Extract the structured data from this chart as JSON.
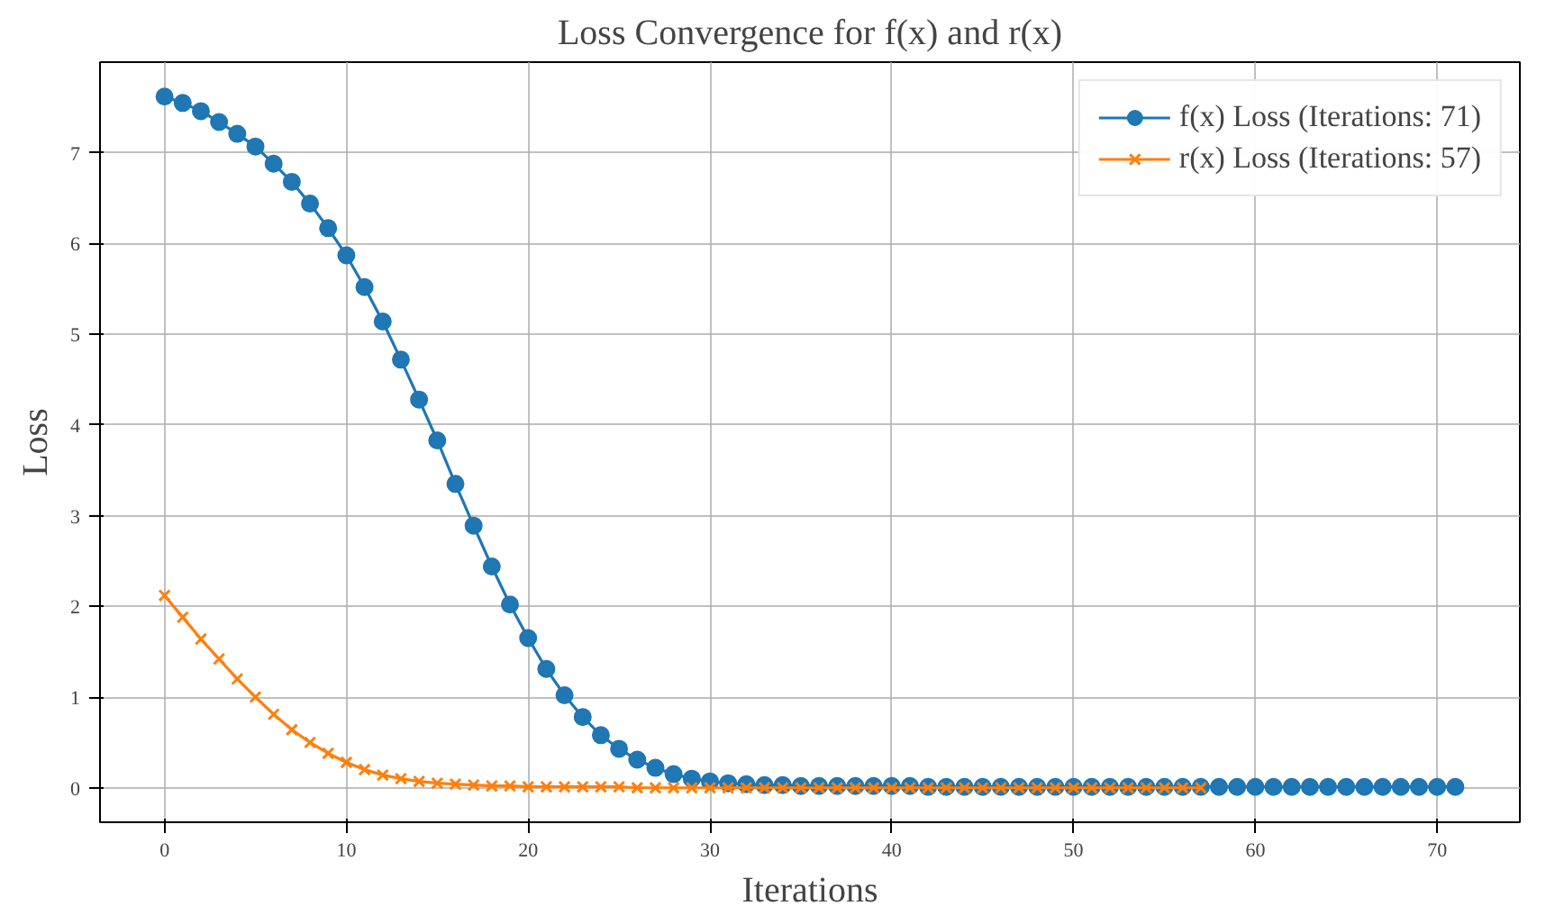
{
  "chart_data": {
    "type": "line",
    "title": "Loss Convergence for f(x) and r(x)",
    "xlabel": "Iterations",
    "ylabel": "Loss",
    "xlim": [
      -3.55,
      74.55
    ],
    "ylim": [
      -0.38,
      8.0
    ],
    "xticks": [
      0,
      10,
      20,
      30,
      40,
      50,
      60,
      70
    ],
    "yticks": [
      0,
      1,
      2,
      3,
      4,
      5,
      6,
      7
    ],
    "grid": true,
    "legend": "top right",
    "series": [
      {
        "name": "f(x) Loss (Iterations: 71)",
        "color": "#1f77b4",
        "marker": "circle",
        "x": [
          0,
          1,
          2,
          3,
          4,
          5,
          6,
          7,
          8,
          9,
          10,
          11,
          12,
          13,
          14,
          15,
          16,
          17,
          18,
          19,
          20,
          21,
          22,
          23,
          24,
          25,
          26,
          27,
          28,
          29,
          30,
          31,
          32,
          33,
          34,
          35,
          36,
          37,
          38,
          39,
          40,
          41,
          42,
          43,
          44,
          45,
          46,
          47,
          48,
          49,
          50,
          51,
          52,
          53,
          54,
          55,
          56,
          57,
          58,
          59,
          60,
          61,
          62,
          63,
          64,
          65,
          66,
          67,
          68,
          69,
          70,
          71
        ],
        "values": [
          7.62,
          7.55,
          7.46,
          7.34,
          7.21,
          7.07,
          6.88,
          6.68,
          6.44,
          6.17,
          5.87,
          5.52,
          5.14,
          4.72,
          4.28,
          3.83,
          3.35,
          2.89,
          2.44,
          2.02,
          1.65,
          1.31,
          1.02,
          0.78,
          0.58,
          0.43,
          0.31,
          0.22,
          0.15,
          0.1,
          0.07,
          0.05,
          0.04,
          0.03,
          0.03,
          0.02,
          0.02,
          0.02,
          0.02,
          0.02,
          0.02,
          0.02,
          0.01,
          0.01,
          0.01,
          0.01,
          0.01,
          0.01,
          0.01,
          0.01,
          0.01,
          0.01,
          0.01,
          0.01,
          0.01,
          0.01,
          0.01,
          0.01,
          0.01,
          0.01,
          0.01,
          0.01,
          0.01,
          0.01,
          0.01,
          0.01,
          0.01,
          0.01,
          0.01,
          0.01,
          0.01,
          0.01
        ]
      },
      {
        "name": "r(x) Loss (Iterations: 57)",
        "color": "#ff7f0e",
        "marker": "cross",
        "x": [
          0,
          1,
          2,
          3,
          4,
          5,
          6,
          7,
          8,
          9,
          10,
          11,
          12,
          13,
          14,
          15,
          16,
          17,
          18,
          19,
          20,
          21,
          22,
          23,
          24,
          25,
          26,
          27,
          28,
          29,
          30,
          31,
          32,
          33,
          34,
          35,
          36,
          37,
          38,
          39,
          40,
          41,
          42,
          43,
          44,
          45,
          46,
          47,
          48,
          49,
          50,
          51,
          52,
          53,
          54,
          55,
          56,
          57
        ],
        "values": [
          2.12,
          1.88,
          1.64,
          1.42,
          1.2,
          1.0,
          0.81,
          0.64,
          0.5,
          0.38,
          0.28,
          0.2,
          0.14,
          0.1,
          0.07,
          0.05,
          0.04,
          0.03,
          0.02,
          0.02,
          0.01,
          0.01,
          0.01,
          0.01,
          0.01,
          0.01,
          0.0,
          0.0,
          0.0,
          0.0,
          0.0,
          0.0,
          0.0,
          0.0,
          0.0,
          0.0,
          0.0,
          0.0,
          0.0,
          0.0,
          0.0,
          0.0,
          0.0,
          0.0,
          0.0,
          0.0,
          0.0,
          0.0,
          0.0,
          0.0,
          0.0,
          0.0,
          0.0,
          0.0,
          0.0,
          0.0,
          0.0,
          0.0
        ]
      }
    ]
  }
}
